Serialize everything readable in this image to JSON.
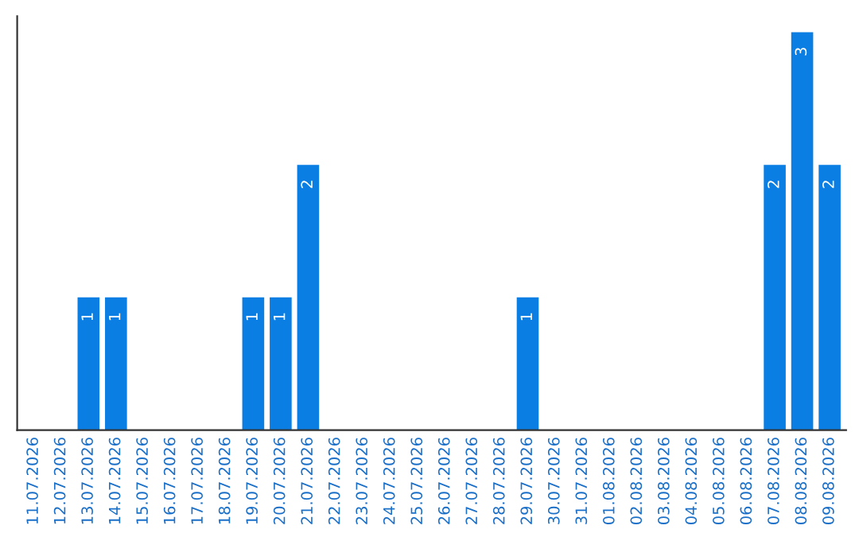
{
  "chart_data": {
    "type": "bar",
    "categories": [
      "11.07.2026",
      "12.07.2026",
      "13.07.2026",
      "14.07.2026",
      "15.07.2026",
      "16.07.2026",
      "17.07.2026",
      "18.07.2026",
      "19.07.2026",
      "20.07.2026",
      "21.07.2026",
      "22.07.2026",
      "23.07.2026",
      "24.07.2026",
      "25.07.2026",
      "26.07.2026",
      "27.07.2026",
      "28.07.2026",
      "29.07.2026",
      "30.07.2026",
      "31.07.2026",
      "01.08.2026",
      "02.08.2026",
      "03.08.2026",
      "04.08.2026",
      "05.08.2026",
      "06.08.2026",
      "07.08.2026",
      "08.08.2026",
      "09.08.2026"
    ],
    "values": [
      0,
      0,
      1,
      1,
      0,
      0,
      0,
      0,
      1,
      1,
      2,
      0,
      0,
      0,
      0,
      0,
      0,
      0,
      1,
      0,
      0,
      0,
      0,
      0,
      0,
      0,
      0,
      2,
      3,
      2
    ],
    "value_labels": [
      null,
      null,
      "1",
      "1",
      null,
      null,
      null,
      null,
      "1",
      "1",
      "2",
      null,
      null,
      null,
      null,
      null,
      null,
      null,
      "1",
      null,
      null,
      null,
      null,
      null,
      null,
      null,
      null,
      "2",
      "3",
      "2"
    ],
    "color": "#0a7ee3",
    "tick_labels": "x",
    "grid": false,
    "legend": false
  }
}
